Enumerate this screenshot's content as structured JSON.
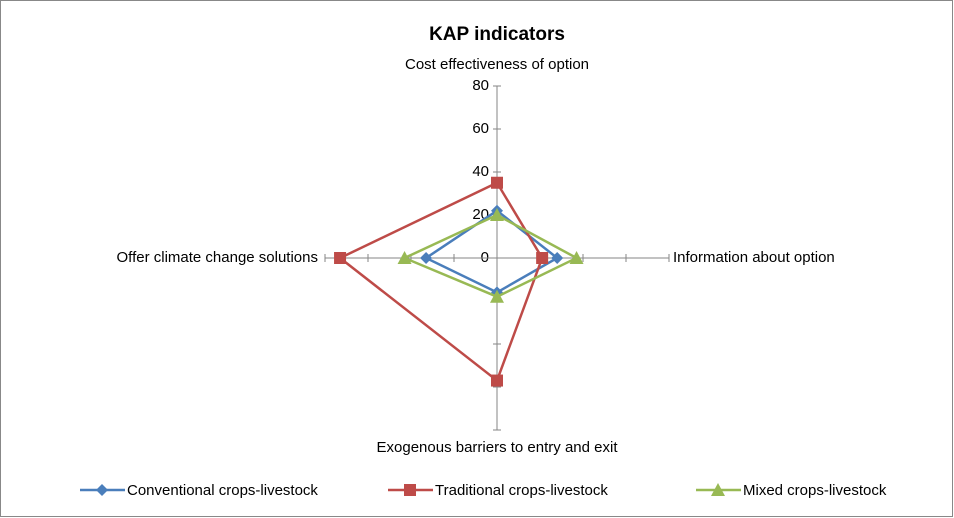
{
  "chart_data": {
    "type": "radar",
    "title": "KAP indicators",
    "categories": [
      "Cost effectiveness of option",
      "Information about option",
      "Exogenous barriers to entry and exit",
      "Offer climate change solutions"
    ],
    "series": [
      {
        "name": "Conventional crops-livestock",
        "color": "#4a7ebb",
        "marker": "diamond",
        "values": [
          22,
          28,
          16,
          33
        ]
      },
      {
        "name": "Traditional crops-livestock",
        "color": "#be4b48",
        "marker": "square",
        "values": [
          35,
          21,
          57,
          73
        ]
      },
      {
        "name": "Mixed crops-livestock",
        "color": "#98b954",
        "marker": "triangle",
        "values": [
          20,
          37,
          18,
          43
        ]
      }
    ],
    "ylim": [
      0,
      80
    ],
    "yticks": [
      0,
      20,
      40,
      60,
      80
    ],
    "legend": "bottom"
  }
}
